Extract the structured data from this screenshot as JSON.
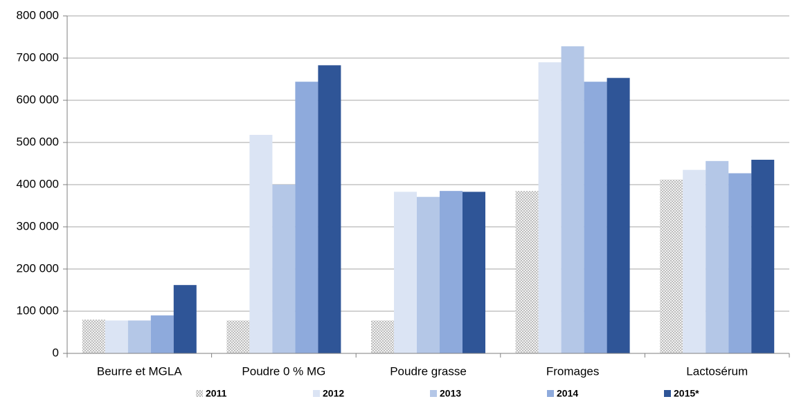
{
  "chart_data": {
    "type": "bar",
    "categories": [
      "Beurre et MGLA",
      "Poudre 0 % MG",
      "Poudre grasse",
      "Fromages",
      "Lactosérum"
    ],
    "series": [
      {
        "name": "2011",
        "color": "#d4d4d4",
        "values": [
          80000,
          78000,
          78000,
          385000,
          412000
        ]
      },
      {
        "name": "2012",
        "color": "#dbe4f4",
        "values": [
          78000,
          518000,
          383000,
          690000,
          435000
        ]
      },
      {
        "name": "2013",
        "color": "#b4c7e7",
        "values": [
          78000,
          400000,
          371000,
          728000,
          456000
        ]
      },
      {
        "name": "2014",
        "color": "#8eaadc",
        "values": [
          90000,
          644000,
          385000,
          644000,
          427000
        ]
      },
      {
        "name": "2015*",
        "color": "#2f5597",
        "values": [
          162000,
          683000,
          383000,
          653000,
          459000
        ]
      }
    ],
    "ylim": [
      0,
      800000
    ],
    "yticks": [
      0,
      {
        "value": 100000,
        "label": "100 000"
      },
      {
        "value": 200000,
        "label": "200 000"
      },
      {
        "value": 300000,
        "label": "300 000"
      },
      {
        "value": 400000,
        "label": "400 000"
      },
      {
        "value": 500000,
        "label": "500 000"
      },
      {
        "value": 600000,
        "label": "600 000"
      },
      {
        "value": 700000,
        "label": "700 000"
      },
      {
        "value": 800000,
        "label": "800 000"
      }
    ],
    "grid": true
  }
}
